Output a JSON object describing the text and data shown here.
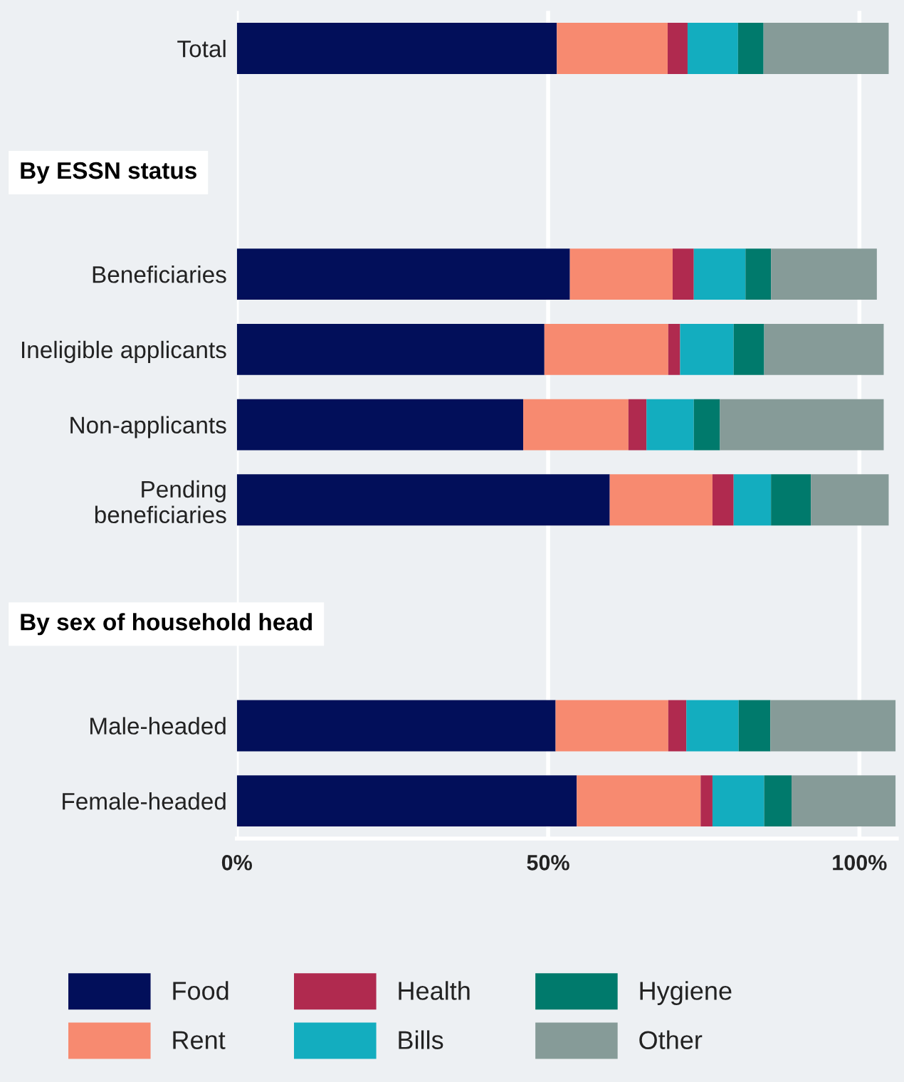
{
  "chart_data": {
    "type": "bar",
    "orientation": "horizontal",
    "stacked": true,
    "categories": [
      "Total",
      null,
      null,
      "Beneficiaries",
      "Ineligible applicants",
      "Non-applicants",
      "Pending\nbeneficiaries",
      null,
      null,
      "Male-headed",
      "Female-headed"
    ],
    "series": [
      {
        "name": "Food",
        "color": "#020f5a",
        "values": [
          51.4,
          null,
          null,
          53.5,
          49.4,
          46.0,
          59.9,
          null,
          null,
          51.2,
          54.6
        ]
      },
      {
        "name": "Rent",
        "color": "#f78a70",
        "values": [
          17.8,
          null,
          null,
          16.5,
          19.9,
          16.9,
          16.5,
          null,
          null,
          18.1,
          19.9
        ]
      },
      {
        "name": "Health",
        "color": "#b02a4f",
        "values": [
          3.2,
          null,
          null,
          3.4,
          1.9,
          2.9,
          3.4,
          null,
          null,
          2.9,
          1.9
        ]
      },
      {
        "name": "Bills",
        "color": "#13adbf",
        "values": [
          8.1,
          null,
          null,
          8.3,
          8.6,
          7.6,
          6.0,
          null,
          null,
          8.4,
          8.3
        ]
      },
      {
        "name": "Hygiene",
        "color": "#007a6c",
        "values": [
          4.1,
          null,
          null,
          4.1,
          4.9,
          4.2,
          6.4,
          null,
          null,
          5.1,
          4.4
        ]
      },
      {
        "name": "Other",
        "color": "#869b98",
        "values": [
          20.1,
          null,
          null,
          17.0,
          19.2,
          26.3,
          12.5,
          null,
          null,
          20.1,
          16.7
        ]
      }
    ],
    "annotations": [
      "By ESSN status",
      "By sex of household head"
    ],
    "xlim": [
      0,
      106
    ],
    "xticks": [
      {
        "value": 0,
        "label": "0%"
      },
      {
        "value": 50,
        "label": "50%"
      },
      {
        "value": 100,
        "label": "100%"
      }
    ],
    "grid": "x",
    "legend": "bottom"
  }
}
